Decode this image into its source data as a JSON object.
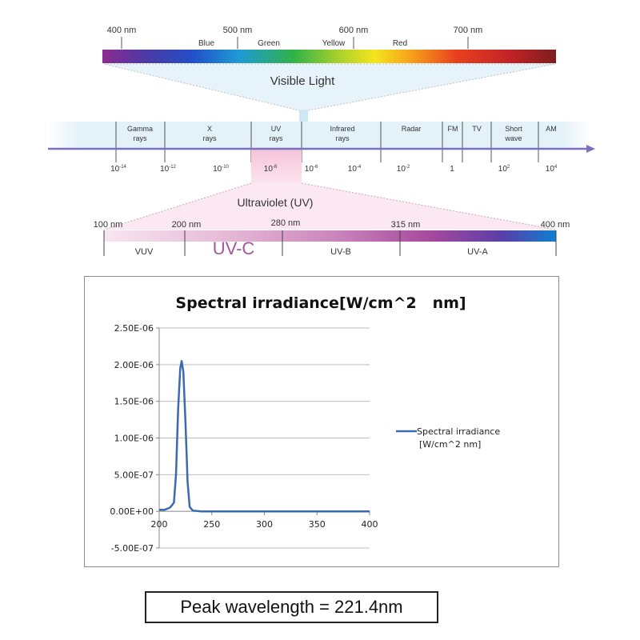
{
  "spectrum": {
    "visible_nm_labels": [
      "400 nm",
      "500 nm",
      "600 nm",
      "700 nm"
    ],
    "color_names": [
      "Blue",
      "Green",
      "Yellow",
      "Red"
    ],
    "visible_title": "Visible Light",
    "bands": [
      {
        "name": "Gamma",
        "sub": "rays"
      },
      {
        "name": "X",
        "sub": "rays"
      },
      {
        "name": "UV",
        "sub": "rays"
      },
      {
        "name": "Infrared",
        "sub": "rays"
      },
      {
        "name": "Radar",
        "sub": ""
      },
      {
        "name": "FM",
        "sub": ""
      },
      {
        "name": "TV",
        "sub": ""
      },
      {
        "name": "Short",
        "sub": "wave"
      },
      {
        "name": "AM",
        "sub": ""
      }
    ],
    "exponents": [
      {
        "base": "10",
        "exp": "-14"
      },
      {
        "base": "10",
        "exp": "-12"
      },
      {
        "base": "10",
        "exp": "-10"
      },
      {
        "base": "10",
        "exp": "-8"
      },
      {
        "base": "10",
        "exp": "-6"
      },
      {
        "base": "10",
        "exp": "-4"
      },
      {
        "base": "10",
        "exp": "-2"
      },
      {
        "base": "1",
        "exp": ""
      },
      {
        "base": "10",
        "exp": "2"
      },
      {
        "base": "10",
        "exp": "4"
      }
    ],
    "uv_title": "Ultraviolet (UV)",
    "uv_nm_labels": [
      "100 nm",
      "200 nm",
      "280 nm",
      "315 nm",
      "400 nm"
    ],
    "uv_bands": [
      "VUV",
      "UV-C",
      "UV-B",
      "UV-A"
    ],
    "colors": {
      "axis": "#7b6fc0",
      "band_bg": "#e3f1f9",
      "pink": "#f6c9dc"
    }
  },
  "chart_data": {
    "type": "line",
    "title": "Spectral irradiance[W/cm^2   nm]",
    "xlabel": "",
    "ylabel": "",
    "xlim": [
      200,
      400
    ],
    "ylim": [
      -5e-07,
      2.5e-06
    ],
    "x_ticks": [
      200,
      250,
      300,
      350,
      400
    ],
    "x_tick_labels": [
      "200",
      "250",
      "300",
      "350",
      "400"
    ],
    "y_ticks": [
      -5e-07,
      0,
      5e-07,
      1e-06,
      1.5e-06,
      2e-06,
      2.5e-06
    ],
    "y_tick_labels": [
      "-5.00E-07",
      "0.00E+00",
      "5.00E-07",
      "1.00E-06",
      "1.50E-06",
      "2.00E-06",
      "2.50E-06"
    ],
    "grid": true,
    "legend_position": "right",
    "series": [
      {
        "name": "Spectral irradiance[W/cm^2   nm]",
        "color": "#3c6aae",
        "x": [
          200,
          205,
          210,
          212,
          214,
          216,
          218,
          220,
          221.4,
          223,
          225,
          227,
          229,
          232,
          240,
          260,
          300,
          350,
          400
        ],
        "y": [
          2e-08,
          2e-08,
          5e-08,
          8e-08,
          1.2e-07,
          5e-07,
          1.4e-06,
          1.95e-06,
          2.05e-06,
          1.9e-06,
          1.2e-06,
          4e-07,
          6e-08,
          1e-08,
          0,
          0,
          0,
          0,
          0
        ]
      }
    ]
  },
  "peak_label": "Peak wavelength = 221.4nm"
}
